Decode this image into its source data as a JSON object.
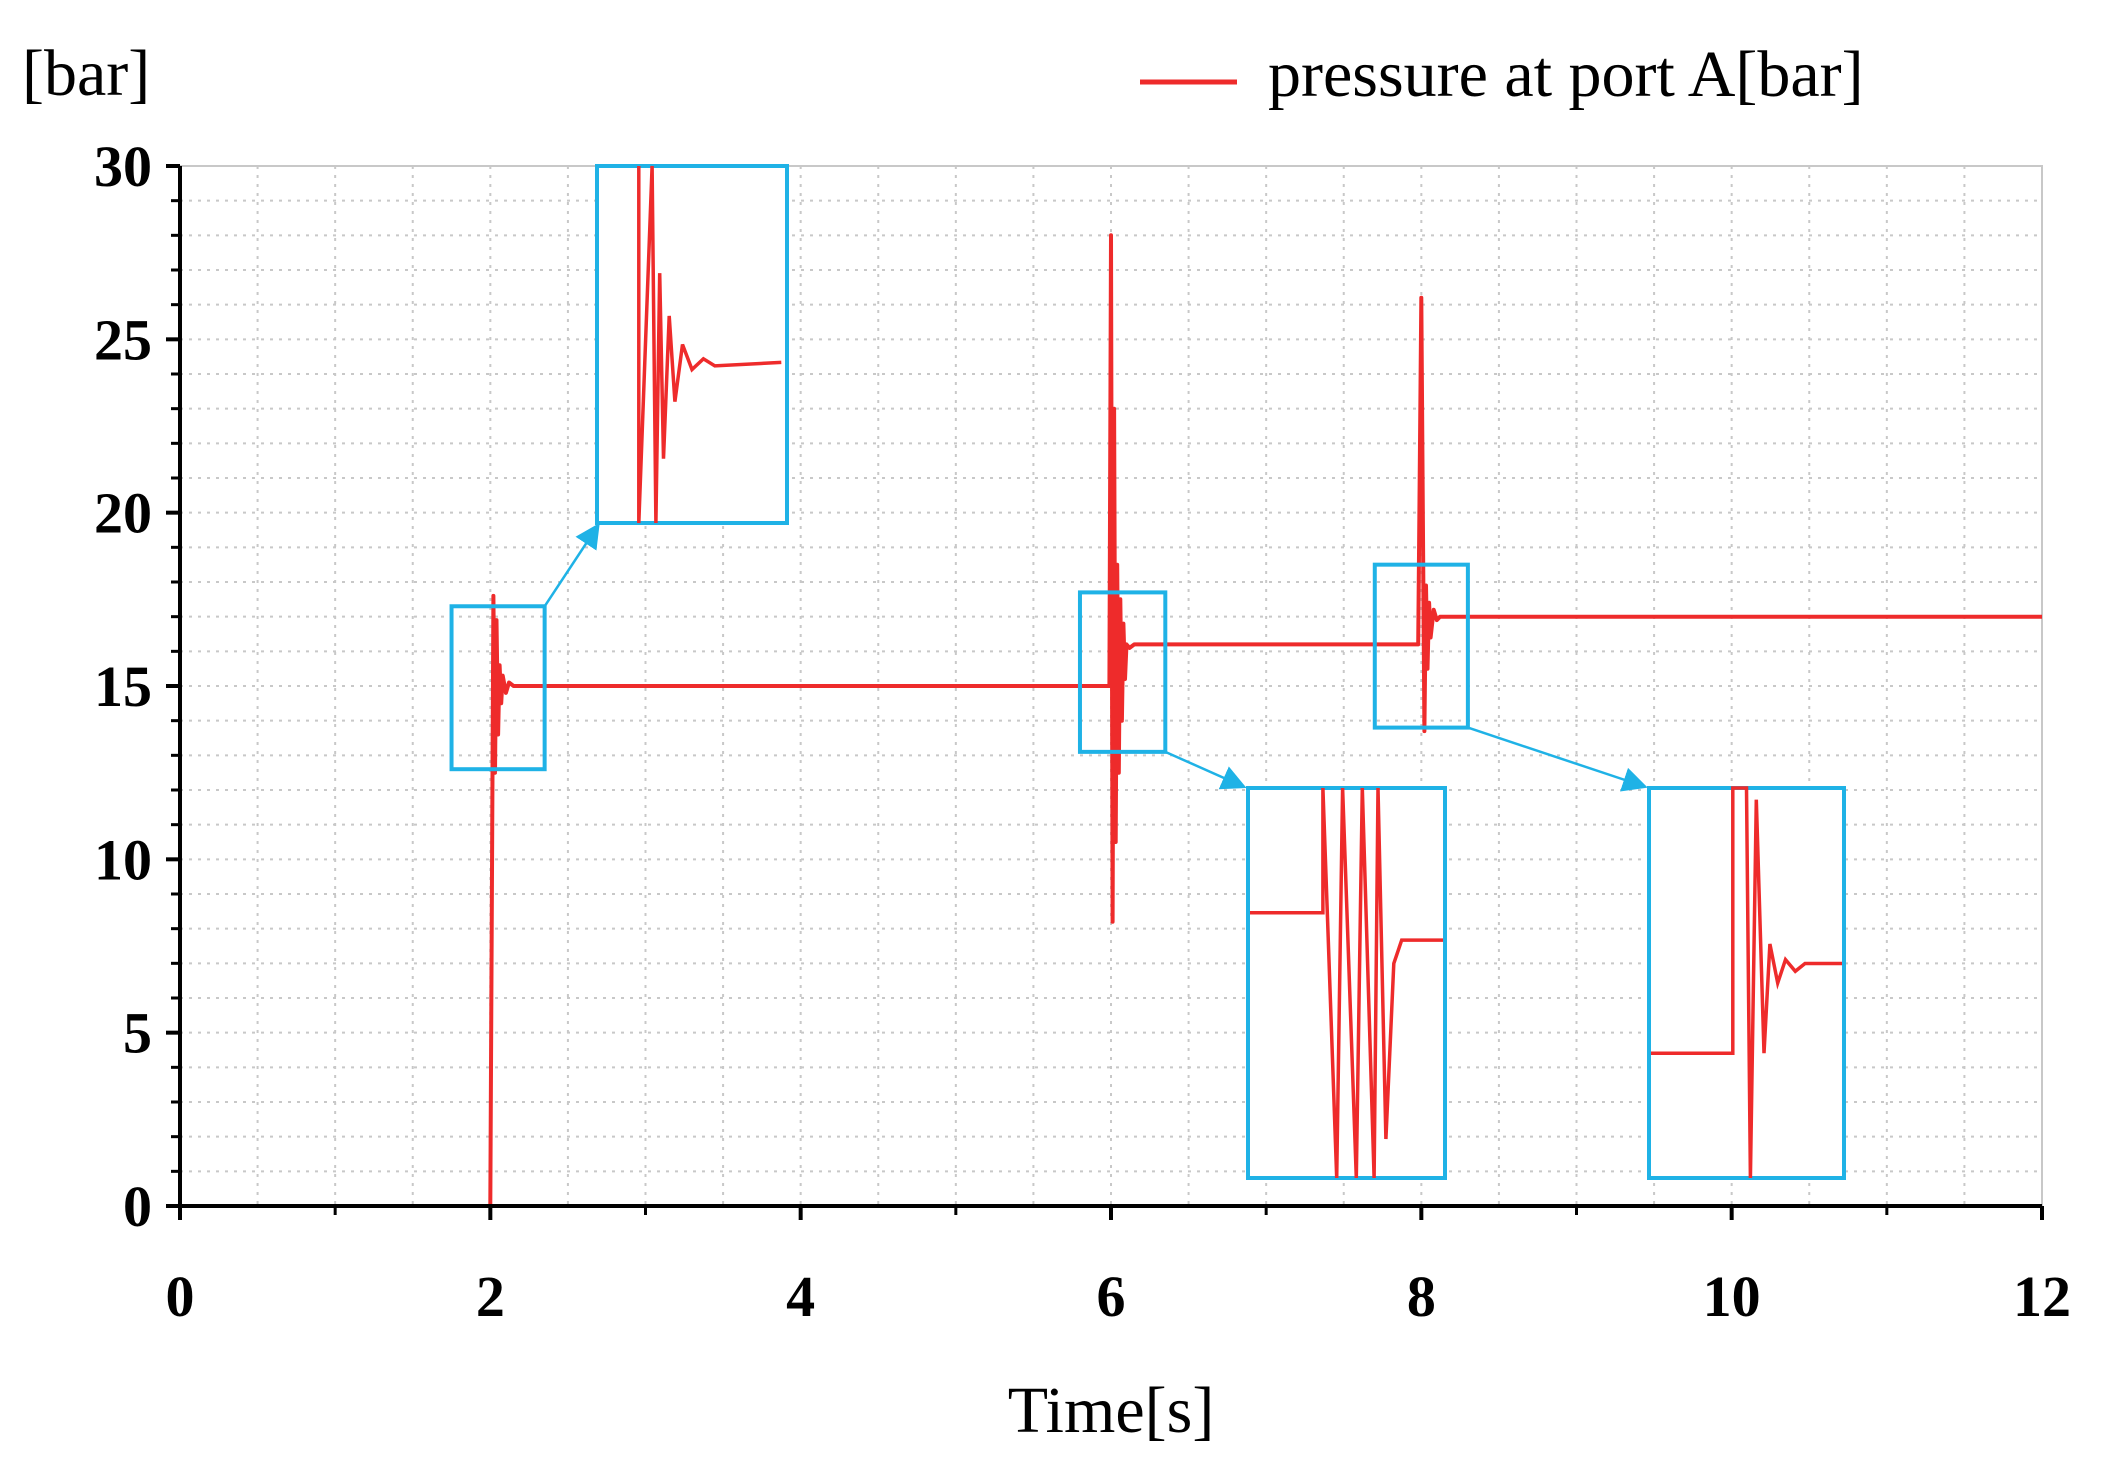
{
  "chart_data": {
    "type": "line",
    "title": "",
    "xlabel": "Time[s]",
    "ylabel": "[bar]",
    "xlim": [
      0,
      12
    ],
    "ylim": [
      0,
      30
    ],
    "xticks": [
      0,
      2,
      4,
      6,
      8,
      10,
      12
    ],
    "yticks": [
      0,
      5,
      10,
      15,
      20,
      25,
      30
    ],
    "xticks_minor": [
      1,
      3,
      5,
      7,
      9,
      11
    ],
    "grid": true,
    "legend_position": "top-right",
    "colors": {
      "series": "#ee2b2b",
      "highlight": "#1fb2e6",
      "axis": "#000000",
      "grid": "#c8c8c8"
    },
    "series": [
      {
        "name": "pressure at port A[bar]",
        "x": [
          0,
          2.0,
          2.02,
          2.03,
          2.04,
          2.05,
          2.06,
          2.07,
          2.08,
          2.1,
          2.12,
          2.15,
          5.99,
          6.0,
          6.01,
          6.02,
          6.03,
          6.04,
          6.05,
          6.06,
          6.07,
          6.08,
          6.09,
          6.1,
          6.12,
          6.15,
          7.98,
          8.0,
          8.02,
          8.03,
          8.04,
          8.05,
          8.06,
          8.08,
          8.1,
          8.12,
          8.15,
          12.0
        ],
        "y": [
          0,
          0,
          17.6,
          12.5,
          16.9,
          13.6,
          15.6,
          14.5,
          15.3,
          14.8,
          15.1,
          15.0,
          15.0,
          28.0,
          8.2,
          23.0,
          10.5,
          18.5,
          12.5,
          17.5,
          14.0,
          16.8,
          15.2,
          16.2,
          16.1,
          16.2,
          16.2,
          26.2,
          13.7,
          17.9,
          15.5,
          17.4,
          16.4,
          17.2,
          16.9,
          17.0,
          17.0,
          17.0
        ]
      }
    ],
    "insets": [
      {
        "name": "inset-2s",
        "x_range": [
          1.75,
          2.35
        ],
        "y_range": [
          12.6,
          17.3
        ],
        "target": "upper",
        "settled_level": 0.55
      },
      {
        "name": "inset-6s",
        "x_range": [
          5.8,
          6.35
        ],
        "y_range": [
          13.1,
          17.7
        ],
        "target": "lower-middle",
        "settled_level": 0.32
      },
      {
        "name": "inset-8s",
        "x_range": [
          7.7,
          8.3
        ],
        "y_range": [
          13.8,
          18.5
        ],
        "target": "lower-right",
        "settled_level": 0.55
      }
    ]
  }
}
